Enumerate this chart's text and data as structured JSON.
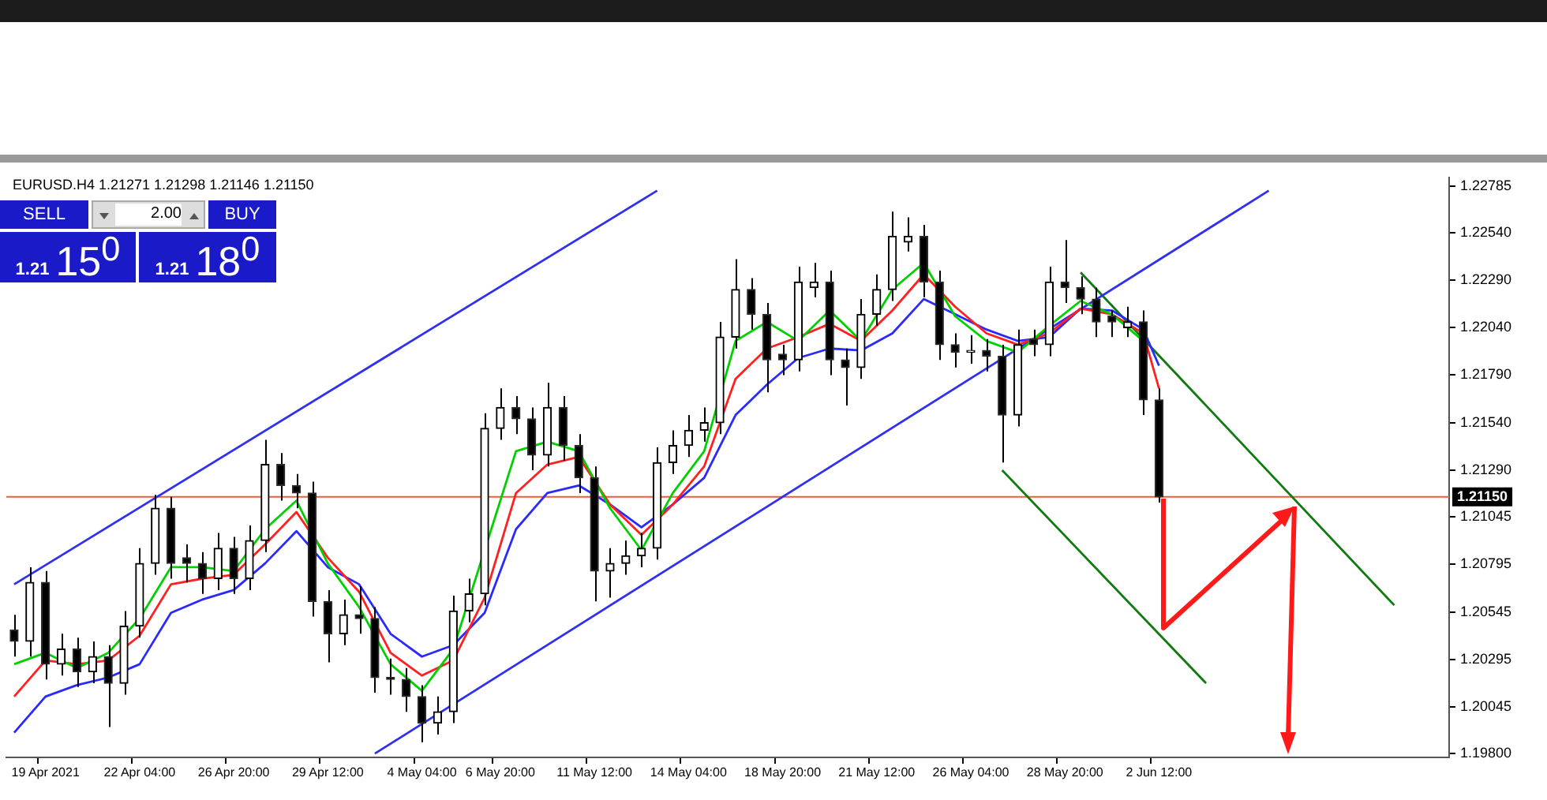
{
  "chart_data": {
    "type": "candlestick",
    "title": "EURUSD.H4 1.21271 1.21298 1.21146 1.21150",
    "annotations": [
      "SELL",
      "2.00",
      "BUY",
      "1.21",
      "15$^{0}$",
      "1.21",
      "18$^{0}$"
    ],
    "categories": [
      null,
      null,
      "19 Apr 2021",
      null,
      null,
      null,
      null,
      null,
      "22 Apr 04:00",
      null,
      null,
      null,
      null,
      null,
      "26 Apr 20:00",
      null,
      null,
      null,
      null,
      null,
      "29 Apr 12:00",
      null,
      null,
      null,
      null,
      null,
      "4 May 04:00",
      null,
      null,
      null,
      null,
      "6 May 20:00",
      null,
      null,
      null,
      null,
      null,
      "11 May 12:00",
      null,
      null,
      null,
      null,
      null,
      "14 May 04:00",
      null,
      null,
      null,
      null,
      null,
      "18 May 20:00",
      null,
      null,
      null,
      null,
      null,
      "21 May 12:00",
      null,
      null,
      null,
      null,
      null,
      "26 May 04:00",
      null,
      null,
      null,
      null,
      null,
      "28 May 20:00",
      null,
      null,
      null,
      null,
      null,
      "2 Jun 12:00",
      null,
      null,
      null,
      null,
      null,
      null,
      null,
      null,
      null,
      null,
      null,
      null,
      null,
      null,
      null,
      null,
      null,
      null
    ],
    "ohlc": [
      [
        1.2045,
        1.2053,
        1.2031,
        1.2039
      ],
      [
        1.2039,
        1.2078,
        1.2031,
        1.207
      ],
      [
        1.207,
        1.2076,
        1.2019,
        1.2027
      ],
      [
        1.2027,
        1.2043,
        1.2021,
        1.2035
      ],
      [
        1.2035,
        1.2041,
        1.2015,
        1.2023
      ],
      [
        1.2023,
        1.2039,
        1.2017,
        1.2031
      ],
      [
        1.2031,
        1.2037,
        1.1994,
        1.2017
      ],
      [
        1.2017,
        1.2055,
        1.2011,
        1.2047
      ],
      [
        1.2047,
        1.2088,
        1.2041,
        1.208
      ],
      [
        1.208,
        1.2116,
        1.2074,
        1.2109
      ],
      [
        1.2109,
        1.2115,
        1.2072,
        1.208
      ],
      [
        1.2083,
        1.209,
        1.207,
        1.208
      ],
      [
        1.208,
        1.2086,
        1.2064,
        1.2072
      ],
      [
        1.2072,
        1.2096,
        1.2066,
        1.2088
      ],
      [
        1.2088,
        1.2094,
        1.2064,
        1.2072
      ],
      [
        1.2072,
        1.21,
        1.2066,
        1.2092
      ],
      [
        1.2092,
        1.2145,
        1.2086,
        1.2132
      ],
      [
        1.2132,
        1.2138,
        1.2113,
        1.2121
      ],
      [
        1.2121,
        1.2127,
        1.2109,
        1.2117
      ],
      [
        1.2117,
        1.2123,
        1.2052,
        1.206
      ],
      [
        1.206,
        1.2066,
        1.2028,
        1.2043
      ],
      [
        1.2043,
        1.2061,
        1.2037,
        1.2053
      ],
      [
        1.2053,
        1.2068,
        1.2043,
        1.2051
      ],
      [
        1.2051,
        1.2057,
        1.2012,
        1.202
      ],
      [
        1.202,
        1.203,
        1.2011,
        1.2019
      ],
      [
        1.2019,
        1.2025,
        1.2002,
        1.201
      ],
      [
        1.201,
        1.2016,
        1.1986,
        1.1996
      ],
      [
        1.1996,
        1.201,
        1.199,
        1.2002
      ],
      [
        1.2002,
        1.2063,
        1.1996,
        1.2055
      ],
      [
        1.2055,
        1.2072,
        1.2049,
        1.2064
      ],
      [
        1.2064,
        1.2159,
        1.2058,
        1.2151
      ],
      [
        1.2151,
        1.2172,
        1.2145,
        1.2162
      ],
      [
        1.2162,
        1.2168,
        1.2148,
        1.2156
      ],
      [
        1.2156,
        1.2162,
        1.2129,
        1.2137
      ],
      [
        1.2137,
        1.2175,
        1.2131,
        1.2162
      ],
      [
        1.2162,
        1.2168,
        1.2134,
        1.2142
      ],
      [
        1.2142,
        1.2148,
        1.2117,
        1.2125
      ],
      [
        1.2125,
        1.2131,
        1.206,
        1.2076
      ],
      [
        1.2076,
        1.2088,
        1.2062,
        1.208
      ],
      [
        1.208,
        1.2092,
        1.2074,
        1.2084
      ],
      [
        1.2084,
        1.2096,
        1.2078,
        1.2088
      ],
      [
        1.2088,
        1.2141,
        1.2082,
        1.2133
      ],
      [
        1.2133,
        1.215,
        1.2127,
        1.2142
      ],
      [
        1.2142,
        1.2158,
        1.2136,
        1.215
      ],
      [
        1.215,
        1.2162,
        1.2144,
        1.2154
      ],
      [
        1.2154,
        1.2207,
        1.2148,
        1.2199
      ],
      [
        1.2199,
        1.224,
        1.2193,
        1.2224
      ],
      [
        1.2224,
        1.223,
        1.2203,
        1.2211
      ],
      [
        1.2211,
        1.2217,
        1.217,
        1.2187
      ],
      [
        1.219,
        1.2195,
        1.2179,
        1.2187
      ],
      [
        1.2187,
        1.2236,
        1.2181,
        1.2228
      ],
      [
        1.2225,
        1.2238,
        1.222,
        1.2228
      ],
      [
        1.2228,
        1.2234,
        1.2179,
        1.2187
      ],
      [
        1.2187,
        1.2193,
        1.2163,
        1.2183
      ],
      [
        1.2183,
        1.2219,
        1.2177,
        1.2211
      ],
      [
        1.2211,
        1.2232,
        1.2205,
        1.2224
      ],
      [
        1.2224,
        1.2265,
        1.2218,
        1.2252
      ],
      [
        1.2249,
        1.2262,
        1.2244,
        1.2252
      ],
      [
        1.2252,
        1.2258,
        1.222,
        1.2228
      ],
      [
        1.2228,
        1.2234,
        1.2187,
        1.2195
      ],
      [
        1.2195,
        1.2201,
        1.2183,
        1.2191
      ],
      [
        1.2191,
        1.22,
        1.2185,
        1.2192
      ],
      [
        1.2192,
        1.2198,
        1.2181,
        1.2189
      ],
      [
        1.2189,
        1.2195,
        1.2133,
        1.2158
      ],
      [
        1.2158,
        1.2203,
        1.2152,
        1.2195
      ],
      [
        1.2198,
        1.2203,
        1.2189,
        1.2195
      ],
      [
        1.2195,
        1.2236,
        1.2189,
        1.2228
      ],
      [
        1.2228,
        1.225,
        1.2217,
        1.2225
      ],
      [
        1.2225,
        1.2231,
        1.2211,
        1.2219
      ],
      [
        1.2219,
        1.2225,
        1.2199,
        1.2207
      ],
      [
        1.221,
        1.2213,
        1.2199,
        1.2207
      ],
      [
        1.2204,
        1.2215,
        1.2199,
        1.2207
      ],
      [
        1.2207,
        1.2213,
        1.2158,
        1.2166
      ],
      [
        1.2166,
        1.2172,
        1.2112,
        1.2115
      ],
      null,
      null,
      null,
      null,
      null,
      null,
      null,
      null,
      null,
      null,
      null,
      null,
      null,
      null,
      null,
      null,
      null,
      null
    ],
    "series": [
      {
        "type": "line",
        "color": "#00d000",
        "values": [
          1.2027,
          null,
          1.2033,
          null,
          1.2025,
          null,
          1.2033,
          null,
          1.2051,
          null,
          1.2078,
          null,
          1.2078,
          null,
          1.2076,
          null,
          1.2098,
          null,
          1.2113,
          null,
          1.208,
          null,
          1.2057,
          null,
          1.2027,
          null,
          1.2013,
          null,
          1.2035,
          null,
          null,
          null,
          1.2139,
          null,
          1.2144,
          null,
          1.2139,
          null,
          1.2109,
          null,
          1.2087,
          null,
          1.2117,
          null,
          1.2139,
          null,
          1.2197,
          null,
          1.2207,
          null,
          1.2197,
          null,
          1.2213,
          null,
          1.2197,
          null,
          1.2224,
          null,
          1.2238,
          null,
          1.221,
          null,
          1.2197,
          null,
          1.2191,
          null,
          1.2205,
          null,
          1.2218,
          null,
          1.2211,
          null,
          1.2197,
          null,
          null,
          null,
          null,
          null,
          null,
          null,
          null,
          null,
          null,
          null,
          null,
          null,
          null,
          null,
          null,
          null,
          null,
          null
        ]
      },
      {
        "type": "line",
        "color": "#ff2020",
        "values": [
          1.201,
          null,
          1.2029,
          null,
          1.2027,
          null,
          1.2029,
          null,
          1.2042,
          null,
          1.2069,
          null,
          1.2072,
          null,
          1.2074,
          null,
          1.209,
          null,
          1.2107,
          null,
          1.2083,
          null,
          1.2065,
          null,
          1.2033,
          null,
          1.2021,
          null,
          1.2029,
          null,
          1.2062,
          null,
          1.2117,
          null,
          1.2132,
          null,
          1.2136,
          null,
          1.2111,
          null,
          1.2095,
          null,
          1.2111,
          null,
          1.2131,
          null,
          1.2177,
          null,
          1.2193,
          null,
          1.2199,
          null,
          1.2206,
          null,
          1.2197,
          null,
          1.2213,
          null,
          1.2232,
          null,
          1.2215,
          null,
          1.2201,
          null,
          1.2195,
          null,
          1.2201,
          null,
          1.2214,
          null,
          1.2211,
          null,
          1.2201,
          1.2172,
          null,
          null,
          null,
          null,
          null,
          null,
          null,
          null,
          null,
          null,
          null,
          null,
          null,
          null,
          null,
          null,
          null,
          null
        ]
      },
      {
        "type": "line",
        "color": "#2a2aff",
        "values": [
          1.1991,
          null,
          1.201,
          null,
          1.2016,
          null,
          1.202,
          null,
          1.2027,
          null,
          1.2054,
          null,
          1.2061,
          null,
          1.2066,
          null,
          1.208,
          null,
          1.2097,
          null,
          1.2078,
          null,
          1.2069,
          null,
          1.2043,
          null,
          1.2031,
          null,
          1.2037,
          null,
          1.2054,
          null,
          1.2098,
          null,
          1.2117,
          null,
          1.2121,
          null,
          1.2111,
          null,
          1.2099,
          null,
          1.2111,
          null,
          1.2125,
          null,
          1.2158,
          null,
          1.2174,
          null,
          1.2188,
          null,
          1.2193,
          null,
          1.2192,
          null,
          1.2201,
          null,
          1.2219,
          null,
          1.2211,
          null,
          1.2203,
          null,
          1.2197,
          null,
          1.2199,
          null,
          1.2214,
          null,
          1.2213,
          null,
          1.2203,
          1.2184,
          null,
          null,
          null,
          null,
          null,
          null,
          null,
          null,
          null,
          null,
          null,
          null,
          null,
          null,
          null,
          null,
          null,
          null
        ]
      },
      {
        "type": "line",
        "color": "#3030f0",
        "values": [
          1.2069,
          null,
          null,
          null,
          null,
          null,
          null,
          null,
          null,
          null,
          null,
          null,
          null,
          null,
          null,
          null,
          null,
          null,
          null,
          null,
          null,
          null,
          null,
          null,
          null,
          null,
          null,
          null,
          null,
          null,
          null,
          null,
          null,
          null,
          null,
          null,
          null,
          null,
          null,
          null,
          null,
          1.2276,
          null,
          null,
          null,
          null,
          null,
          null,
          null,
          null,
          null,
          null,
          null,
          null,
          null,
          null,
          null,
          null,
          null,
          null,
          null,
          null,
          null,
          null,
          null,
          null,
          null,
          null,
          null,
          null,
          null,
          null,
          null,
          null,
          null,
          null,
          null,
          null,
          null,
          null,
          null,
          null,
          null,
          null,
          null,
          null,
          null,
          null,
          null,
          null,
          null,
          null
        ]
      },
      {
        "type": "line",
        "color": "#3030f0",
        "values": [
          null,
          null,
          null,
          null,
          null,
          null,
          null,
          null,
          null,
          null,
          null,
          null,
          null,
          null,
          null,
          null,
          null,
          null,
          null,
          null,
          null,
          null,
          null,
          1.198,
          null,
          null,
          null,
          null,
          null,
          null,
          null,
          null,
          null,
          null,
          null,
          null,
          null,
          null,
          null,
          null,
          null,
          null,
          null,
          null,
          null,
          null,
          null,
          null,
          null,
          null,
          null,
          null,
          null,
          null,
          null,
          null,
          null,
          null,
          null,
          null,
          null,
          null,
          null,
          null,
          null,
          null,
          null,
          null,
          null,
          null,
          null,
          null,
          null,
          null,
          null,
          null,
          null,
          null,
          null,
          null,
          1.2276,
          null,
          null,
          null,
          null,
          null,
          null,
          null,
          null,
          null,
          null,
          null
        ]
      },
      {
        "type": "line",
        "color": "#0f7a0f",
        "values": [
          null,
          null,
          null,
          null,
          null,
          null,
          null,
          null,
          null,
          null,
          null,
          null,
          null,
          null,
          null,
          null,
          null,
          null,
          null,
          null,
          null,
          null,
          null,
          null,
          null,
          null,
          null,
          null,
          null,
          null,
          null,
          null,
          null,
          null,
          null,
          null,
          null,
          null,
          null,
          null,
          null,
          null,
          null,
          null,
          null,
          null,
          null,
          null,
          null,
          null,
          null,
          null,
          null,
          null,
          null,
          null,
          null,
          null,
          null,
          null,
          null,
          null,
          null,
          null,
          null,
          null,
          null,
          null,
          1.2233,
          null,
          null,
          null,
          null,
          null,
          null,
          null,
          null,
          null,
          null,
          null,
          null,
          null,
          null,
          null,
          null,
          null,
          null,
          null,
          1.2058,
          null,
          null,
          null
        ]
      },
      {
        "type": "line",
        "color": "#0f7a0f",
        "values": [
          null,
          null,
          null,
          null,
          null,
          null,
          null,
          null,
          null,
          null,
          null,
          null,
          null,
          null,
          null,
          null,
          null,
          null,
          null,
          null,
          null,
          null,
          null,
          null,
          null,
          null,
          null,
          null,
          null,
          null,
          null,
          null,
          null,
          null,
          null,
          null,
          null,
          null,
          null,
          null,
          null,
          null,
          null,
          null,
          null,
          null,
          null,
          null,
          null,
          null,
          null,
          null,
          null,
          null,
          null,
          null,
          null,
          null,
          null,
          null,
          null,
          null,
          null,
          1.2129,
          null,
          null,
          null,
          null,
          null,
          null,
          null,
          null,
          null,
          null,
          null,
          null,
          1.2017,
          null,
          null,
          null,
          null,
          null,
          null,
          null,
          null,
          null,
          null,
          null,
          null,
          null,
          null,
          null
        ]
      }
    ],
    "ylim": [
      1.1978,
      1.2283
    ],
    "yticks": [
      1.22785,
      {
        "value": 1.2254,
        "label": "1.22540"
      },
      {
        "value": 1.2229,
        "label": "1.22290"
      },
      {
        "value": 1.2204,
        "label": "1.22040"
      },
      {
        "value": 1.2179,
        "label": "1.21790"
      },
      {
        "value": 1.2154,
        "label": "1.21540"
      },
      {
        "value": 1.2129,
        "label": "1.21290"
      },
      1.21045,
      1.20795,
      1.20545,
      1.20295,
      1.20045,
      {
        "value": 1.198,
        "label": "1.19800"
      }
    ],
    "ref_lines": [
      {
        "axis": "y",
        "value": 1.2115,
        "label": "1.21150",
        "color": "#e8603c"
      }
    ]
  }
}
